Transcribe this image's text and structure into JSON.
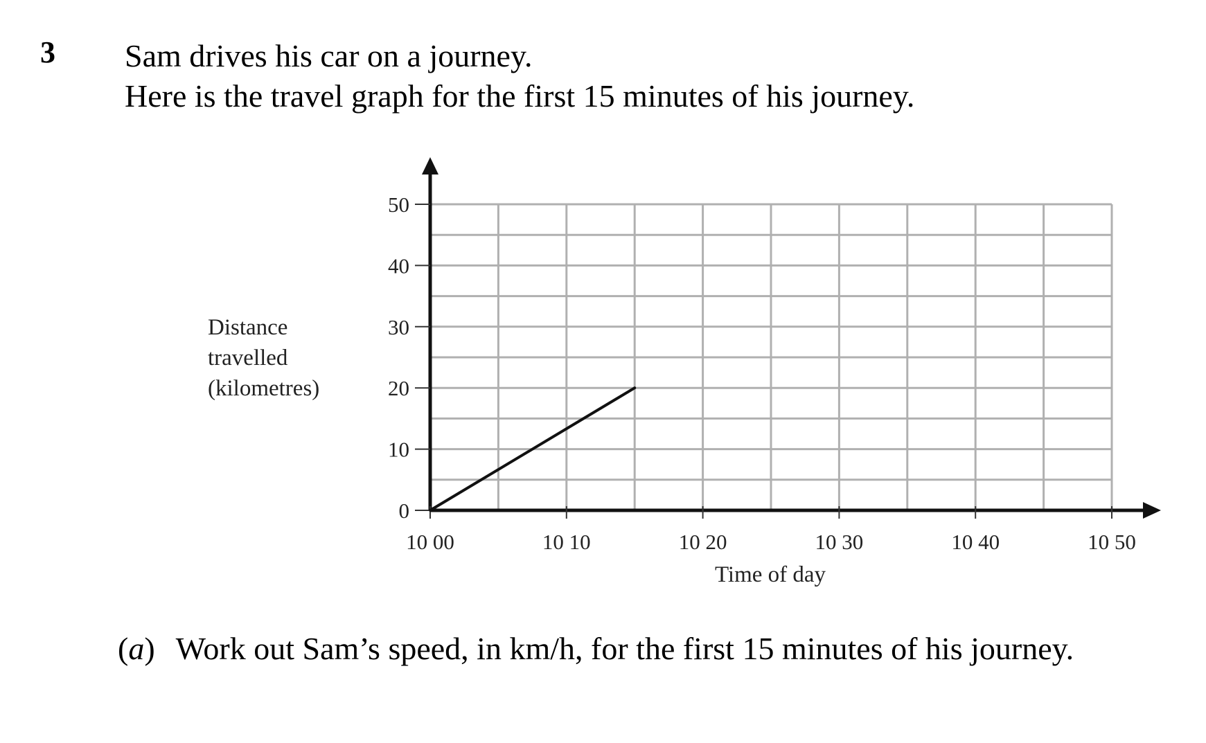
{
  "question": {
    "number": "3",
    "intro_lines": [
      "Sam drives his car on a journey.",
      "Here is the travel graph for the first 15 minutes of his journey."
    ],
    "part_label_open": "(",
    "part_label_letter": "a",
    "part_label_close": ")",
    "part_text": "Work out Sam’s speed, in km/h, for the first 15 minutes of his journey."
  },
  "chart_data": {
    "type": "line",
    "xlabel": "Time of day",
    "ylabel_lines": [
      "Distance",
      "travelled",
      "(kilometres)"
    ],
    "x_ticks": [
      {
        "value": 0,
        "label": "10 00"
      },
      {
        "value": 10,
        "label": "10 10"
      },
      {
        "value": 20,
        "label": "10 20"
      },
      {
        "value": 30,
        "label": "10 30"
      },
      {
        "value": 40,
        "label": "10 40"
      },
      {
        "value": 50,
        "label": "10 50"
      }
    ],
    "y_ticks": [
      0,
      10,
      20,
      30,
      40,
      50
    ],
    "xlim": [
      0,
      50
    ],
    "ylim": [
      0,
      50
    ],
    "x_unit": "minutes after 10 00",
    "grid": {
      "x_step": 5,
      "y_step": 5
    },
    "grid_color": "#b0b0b0",
    "line_color": "#111111",
    "series": [
      {
        "points": [
          {
            "x": 0,
            "y": 0
          },
          {
            "x": 15,
            "y": 20
          }
        ]
      }
    ]
  }
}
